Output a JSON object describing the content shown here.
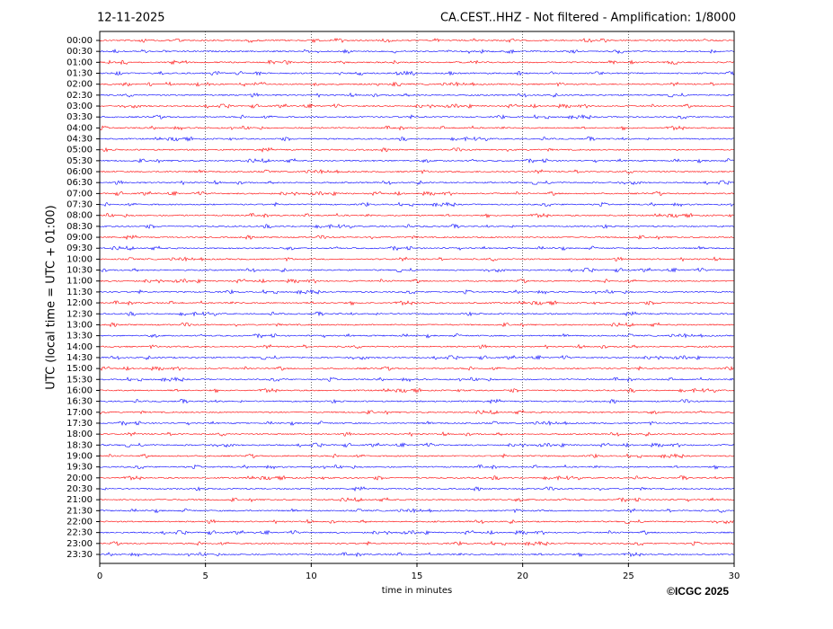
{
  "chart_data": {
    "type": "helicorder",
    "date": "12-11-2025",
    "title": "CA.CEST..HHZ - Not filtered - Amplification: 1/8000",
    "ylabel": "UTC (local time = UTC + 01:00)",
    "xlabel": "time in minutes",
    "credit": "©ICGC 2025",
    "categories": [
      "00:00",
      "00:30",
      "01:00",
      "01:30",
      "02:00",
      "02:30",
      "03:00",
      "03:30",
      "04:00",
      "04:30",
      "05:00",
      "05:30",
      "06:00",
      "06:30",
      "07:00",
      "07:30",
      "08:00",
      "08:30",
      "09:00",
      "09:30",
      "10:00",
      "10:30",
      "11:00",
      "11:30",
      "12:00",
      "12:30",
      "13:00",
      "13:30",
      "14:00",
      "14:30",
      "15:00",
      "15:30",
      "16:00",
      "16:30",
      "17:00",
      "17:30",
      "18:00",
      "18:30",
      "19:00",
      "19:30",
      "20:00",
      "20:30",
      "21:00",
      "21:30",
      "22:00",
      "22:30",
      "23:00",
      "23:30"
    ],
    "xlim": [
      0,
      30
    ],
    "xticks": [
      0,
      5,
      10,
      15,
      20,
      25,
      30
    ],
    "grid": true,
    "colors": [
      "#ff0000",
      "#0000ff"
    ]
  }
}
